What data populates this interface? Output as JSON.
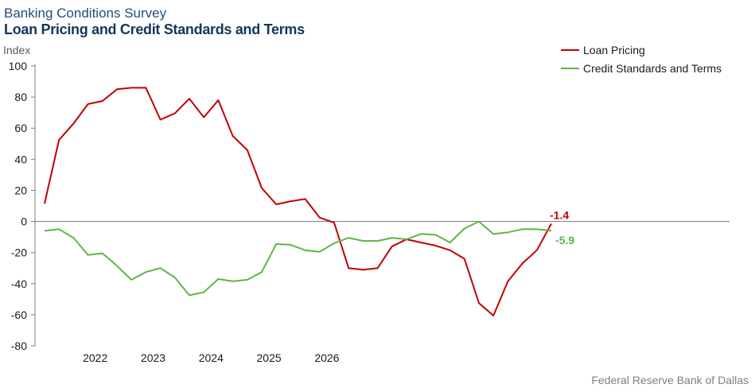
{
  "header": {
    "title": "Banking Conditions Survey",
    "subtitle": "Loan Pricing and Credit Standards and Terms"
  },
  "footer": {
    "source": "Federal Reserve Bank of Dallas"
  },
  "chart_data": {
    "type": "line",
    "ylabel": "Index",
    "ylim": [
      -80,
      100
    ],
    "yticks": [
      100,
      80,
      60,
      40,
      20,
      0,
      -20,
      -40,
      -60,
      -80
    ],
    "x_axis": {
      "labels": [
        "2022",
        "2023",
        "2024",
        "2025",
        "2026"
      ]
    },
    "grid": false,
    "legend": {
      "placement": "top-right"
    },
    "series": [
      {
        "name": "Loan Pricing",
        "color": "#c00000",
        "end_label": "-1.4",
        "points": [
          [
            "2021Q3",
            11.5
          ],
          [
            "2021Q4",
            52.5
          ],
          [
            "2022Q1",
            63
          ],
          [
            "2022Q2",
            75.5
          ],
          [
            "2022Q3",
            77.5
          ],
          [
            "2022Q4",
            85
          ],
          [
            "2023Q1",
            86
          ],
          [
            "2023Q2",
            86
          ],
          [
            "2023Q3",
            65.5
          ],
          [
            "2023Q4",
            69.5
          ],
          [
            "2024Q1",
            79
          ],
          [
            "2024Q2",
            67
          ],
          [
            "2024Q3",
            78
          ],
          [
            "2024Q4",
            55
          ],
          [
            "2025Q1",
            46
          ],
          [
            "2025Q2",
            21.5
          ],
          [
            "2025Q3",
            11
          ],
          [
            "2025Q4",
            13
          ],
          [
            "2026Q1",
            14.5
          ],
          [
            "2026Q2",
            2.5
          ],
          [
            "2026Q3",
            -0.8
          ],
          [
            "2026Q4",
            -30
          ],
          [
            "2027Q1",
            -31
          ],
          [
            "2027Q2",
            -30
          ],
          [
            "2027Q3",
            -16
          ],
          [
            "2027Q4",
            -11.5
          ],
          [
            "2028Q1",
            -13.5
          ],
          [
            "2028Q2",
            -15.5
          ],
          [
            "2028Q3",
            -18.5
          ],
          [
            "2028Q4",
            -24
          ],
          [
            "2029Q1",
            -52.5
          ],
          [
            "2029Q2",
            -60.5
          ],
          [
            "2029Q3",
            -38.5
          ],
          [
            "2029Q4",
            -27
          ],
          [
            "2030Q1",
            -18.5
          ],
          [
            "2030Q2",
            -1.4
          ]
        ]
      },
      {
        "name": "Credit Standards and Terms",
        "color": "#5fb547",
        "end_label": "-5.9",
        "points": [
          [
            "2021Q3",
            -6
          ],
          [
            "2021Q4",
            -5
          ],
          [
            "2022Q1",
            -10.5
          ],
          [
            "2022Q2",
            -21.5
          ],
          [
            "2022Q3",
            -20.5
          ],
          [
            "2022Q4",
            -28.5
          ],
          [
            "2023Q1",
            -37.5
          ],
          [
            "2023Q2",
            -32.5
          ],
          [
            "2023Q3",
            -30
          ],
          [
            "2023Q4",
            -36
          ],
          [
            "2024Q1",
            -47.5
          ],
          [
            "2024Q2",
            -45.5
          ],
          [
            "2024Q3",
            -37
          ],
          [
            "2024Q4",
            -38.5
          ],
          [
            "2025Q1",
            -37.5
          ],
          [
            "2025Q2",
            -32.5
          ],
          [
            "2025Q3",
            -14.5
          ],
          [
            "2025Q4",
            -15
          ],
          [
            "2026Q1",
            -18.5
          ],
          [
            "2026Q2",
            -19.5
          ],
          [
            "2026Q3",
            -14
          ],
          [
            "2026Q4",
            -10.5
          ],
          [
            "2027Q1",
            -12.5
          ],
          [
            "2027Q2",
            -12.5
          ],
          [
            "2027Q3",
            -10.5
          ],
          [
            "2027Q4",
            -11.5
          ],
          [
            "2028Q1",
            -8
          ],
          [
            "2028Q2",
            -8.5
          ],
          [
            "2028Q3",
            -13.5
          ],
          [
            "2028Q4",
            -4.5
          ],
          [
            "2029Q1",
            0
          ],
          [
            "2029Q2",
            -8
          ],
          [
            "2029Q3",
            -7
          ],
          [
            "2029Q4",
            -5
          ],
          [
            "2030Q1",
            -5
          ],
          [
            "2030Q2",
            -5.9
          ]
        ]
      }
    ]
  }
}
